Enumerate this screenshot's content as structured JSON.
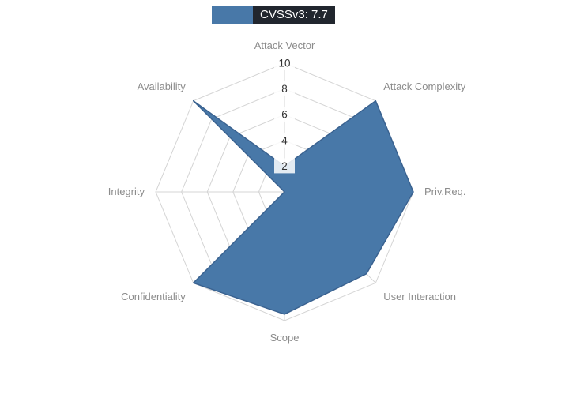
{
  "legend": {
    "label": "CVSSv3: 7.7"
  },
  "chart_data": {
    "type": "radar",
    "title": "CVSSv3: 7.7",
    "legend_position": "top",
    "grid": true,
    "categories": [
      "Attack Vector",
      "Attack Complexity",
      "Priv.Req.",
      "User Interaction",
      "Scope",
      "Confidentiality",
      "Integrity",
      "Availability"
    ],
    "series": [
      {
        "name": "CVSSv3: 7.7",
        "values": [
          2,
          10,
          10,
          9,
          9.5,
          10,
          0,
          10
        ]
      }
    ],
    "ticks": [
      2,
      4,
      6,
      8,
      10
    ],
    "range": [
      0,
      10
    ],
    "colors": {
      "fill": "#4878a8",
      "line": "#3a6290",
      "grid": "#d4d4d4",
      "axis_label": "#8c8c8c",
      "tick_text": "#333333",
      "legend_bg": "#21262e",
      "legend_text": "#ffffff"
    }
  }
}
